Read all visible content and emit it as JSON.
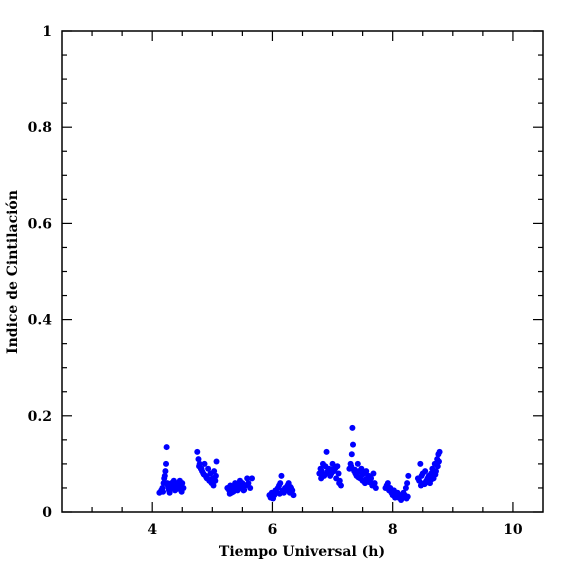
{
  "chart_data": {
    "type": "scatter",
    "title": "",
    "xlabel": "Tiempo Universal (h)",
    "ylabel": "Indice de Cintilación",
    "xlim": [
      2.5,
      10.5
    ],
    "ylim": [
      0,
      1
    ],
    "x_ticks": [
      4,
      6,
      8,
      10
    ],
    "y_ticks": [
      0,
      0.2,
      0.4,
      0.6,
      0.8,
      1
    ],
    "y_tick_labels": [
      "0",
      "0.2",
      "0.4",
      "0.6",
      "0.8",
      "1"
    ],
    "marker_color": "#0000ff",
    "grid": false,
    "legend": "none",
    "series": [
      {
        "x": [
          4.12,
          4.15,
          4.17,
          4.19,
          4.2,
          4.22,
          4.23,
          4.24,
          4.25,
          4.26,
          4.27,
          4.28,
          4.3,
          4.32,
          4.34,
          4.36,
          4.38,
          4.4,
          4.42,
          4.44,
          4.46,
          4.48,
          4.5,
          4.52,
          4.18,
          4.21,
          4.29,
          4.33,
          4.37,
          4.41,
          4.45,
          4.49,
          4.75,
          4.77,
          4.79,
          4.81,
          4.83,
          4.85,
          4.87,
          4.89,
          4.91,
          4.93,
          4.95,
          4.97,
          4.99,
          5.01,
          5.03,
          5.05,
          5.07,
          4.78,
          4.82,
          4.86,
          4.9,
          4.94,
          4.98,
          5.02,
          5.06,
          5.25,
          5.28,
          5.3,
          5.32,
          5.34,
          5.36,
          5.38,
          5.4,
          5.42,
          5.44,
          5.46,
          5.48,
          5.5,
          5.52,
          5.55,
          5.58,
          5.6,
          5.63,
          5.66,
          5.29,
          5.35,
          5.41,
          5.47,
          5.53,
          5.95,
          5.97,
          5.99,
          6.01,
          6.03,
          6.05,
          6.07,
          6.09,
          6.11,
          6.13,
          6.15,
          6.17,
          6.19,
          6.21,
          6.23,
          6.25,
          6.27,
          6.29,
          6.31,
          6.33,
          6.35,
          6.12,
          6.18,
          6.24,
          6.3,
          6.78,
          6.8,
          6.82,
          6.84,
          6.86,
          6.88,
          6.9,
          6.92,
          6.94,
          6.96,
          6.98,
          7.0,
          7.02,
          7.04,
          7.06,
          7.08,
          7.1,
          7.12,
          7.14,
          6.81,
          6.87,
          6.93,
          6.99,
          7.05,
          7.11,
          7.28,
          7.3,
          7.32,
          7.33,
          7.34,
          7.36,
          7.38,
          7.4,
          7.42,
          7.44,
          7.46,
          7.48,
          7.5,
          7.52,
          7.54,
          7.56,
          7.58,
          7.6,
          7.62,
          7.64,
          7.66,
          7.68,
          7.7,
          7.72,
          7.31,
          7.37,
          7.43,
          7.49,
          7.55,
          7.61,
          7.67,
          7.88,
          7.9,
          7.92,
          7.94,
          7.96,
          7.98,
          8.0,
          8.02,
          8.04,
          8.06,
          8.08,
          8.1,
          8.12,
          8.14,
          8.16,
          8.18,
          8.2,
          8.22,
          8.24,
          8.26,
          8.23,
          8.25,
          8.42,
          8.44,
          8.46,
          8.48,
          8.5,
          8.52,
          8.54,
          8.56,
          8.58,
          8.6,
          8.62,
          8.64,
          8.66,
          8.68,
          8.7,
          8.72,
          8.74,
          8.76,
          8.78,
          8.47,
          8.53,
          8.59,
          8.65,
          8.71,
          8.75,
          8.77
        ],
        "y": [
          0.04,
          0.045,
          0.05,
          0.06,
          0.07,
          0.085,
          0.1,
          0.135,
          0.06,
          0.055,
          0.05,
          0.045,
          0.055,
          0.06,
          0.05,
          0.065,
          0.045,
          0.06,
          0.055,
          0.05,
          0.065,
          0.045,
          0.06,
          0.05,
          0.042,
          0.075,
          0.04,
          0.05,
          0.058,
          0.048,
          0.052,
          0.042,
          0.125,
          0.11,
          0.1,
          0.09,
          0.085,
          0.08,
          0.1,
          0.075,
          0.07,
          0.09,
          0.065,
          0.08,
          0.06,
          0.07,
          0.085,
          0.065,
          0.105,
          0.095,
          0.09,
          0.078,
          0.072,
          0.068,
          0.062,
          0.055,
          0.075,
          0.05,
          0.045,
          0.055,
          0.04,
          0.05,
          0.045,
          0.06,
          0.05,
          0.045,
          0.055,
          0.065,
          0.05,
          0.06,
          0.045,
          0.055,
          0.07,
          0.06,
          0.05,
          0.07,
          0.038,
          0.042,
          0.048,
          0.052,
          0.046,
          0.035,
          0.03,
          0.04,
          0.028,
          0.035,
          0.045,
          0.04,
          0.05,
          0.055,
          0.06,
          0.075,
          0.045,
          0.04,
          0.05,
          0.045,
          0.055,
          0.06,
          0.04,
          0.05,
          0.045,
          0.035,
          0.038,
          0.042,
          0.048,
          0.052,
          0.08,
          0.09,
          0.085,
          0.1,
          0.075,
          0.095,
          0.125,
          0.085,
          0.09,
          0.075,
          0.08,
          0.1,
          0.085,
          0.09,
          0.07,
          0.095,
          0.08,
          0.065,
          0.055,
          0.07,
          0.078,
          0.082,
          0.088,
          0.092,
          0.06,
          0.09,
          0.1,
          0.12,
          0.175,
          0.14,
          0.085,
          0.08,
          0.075,
          0.1,
          0.085,
          0.07,
          0.09,
          0.065,
          0.08,
          0.06,
          0.085,
          0.07,
          0.075,
          0.065,
          0.07,
          0.055,
          0.08,
          0.06,
          0.05,
          0.095,
          0.088,
          0.072,
          0.078,
          0.068,
          0.062,
          0.058,
          0.05,
          0.055,
          0.06,
          0.045,
          0.05,
          0.04,
          0.035,
          0.045,
          0.03,
          0.035,
          0.04,
          0.03,
          0.035,
          0.025,
          0.03,
          0.04,
          0.035,
          0.05,
          0.06,
          0.075,
          0.028,
          0.032,
          0.07,
          0.065,
          0.1,
          0.075,
          0.08,
          0.06,
          0.085,
          0.065,
          0.07,
          0.075,
          0.06,
          0.08,
          0.09,
          0.07,
          0.1,
          0.085,
          0.11,
          0.12,
          0.125,
          0.055,
          0.058,
          0.062,
          0.068,
          0.078,
          0.095,
          0.105
        ]
      }
    ]
  }
}
